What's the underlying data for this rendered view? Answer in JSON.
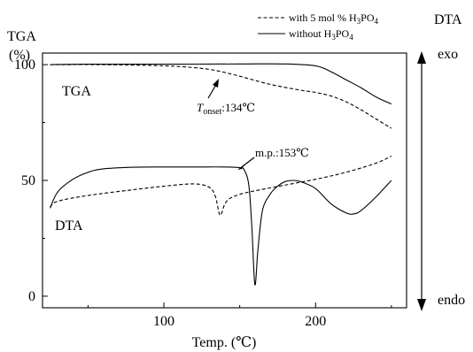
{
  "chart_data": {
    "type": "line",
    "xlabel": "Temp. (℃)",
    "ylabel_left": "TGA",
    "ylabel_left_unit": "(%)",
    "ylabel_right": "DTA",
    "right_top_label": "exo",
    "right_bottom_label": "endo",
    "xlim": [
      20,
      260
    ],
    "ylim": [
      -5,
      105
    ],
    "xticks": [
      100,
      200
    ],
    "yticks": [
      0,
      50,
      100
    ],
    "legend_position": "top-right",
    "legend": [
      {
        "style": "dashed",
        "parts": [
          "with 5 mol % H",
          "3",
          "PO",
          "4"
        ]
      },
      {
        "style": "solid",
        "parts": [
          "without H",
          "3",
          "PO",
          "4"
        ]
      }
    ],
    "curve_labels": {
      "tga": "TGA",
      "dta": "DTA"
    },
    "annotations": {
      "onset_symbol": "T",
      "onset_sub": "onset",
      "onset_value": ":134℃",
      "mp": "m.p.:153℃"
    },
    "series": [
      {
        "curve": "TGA",
        "style": "solid",
        "x": [
          25,
          50,
          100,
          150,
          180,
          200,
          210,
          220,
          230,
          240,
          250
        ],
        "y": [
          100,
          100.2,
          100.2,
          100.3,
          100.3,
          99.5,
          97,
          93.5,
          90,
          86,
          83
        ]
      },
      {
        "curve": "TGA",
        "style": "dashed",
        "x": [
          25,
          60,
          100,
          120,
          134,
          150,
          170,
          190,
          200,
          210,
          220,
          230,
          240,
          250
        ],
        "y": [
          100,
          100,
          99.5,
          98.7,
          97.5,
          95,
          91.5,
          89,
          88,
          86.5,
          84,
          80.5,
          76.5,
          72.5
        ]
      },
      {
        "curve": "DTA",
        "style": "solid",
        "x": [
          25,
          30,
          40,
          50,
          60,
          80,
          100,
          120,
          140,
          150,
          153,
          156,
          158,
          160,
          162,
          165,
          170,
          175,
          180,
          185,
          190,
          200,
          210,
          220,
          225,
          230,
          240,
          250
        ],
        "y": [
          38,
          45,
          50.5,
          53.5,
          55,
          55.7,
          55.8,
          55.8,
          55.8,
          55.5,
          54.5,
          48,
          30,
          5,
          20,
          37,
          44,
          47.5,
          49.5,
          50,
          49.5,
          46.5,
          40,
          36,
          35.5,
          37,
          43,
          50
        ]
      },
      {
        "curve": "DTA",
        "style": "dashed",
        "x": [
          25,
          30,
          50,
          80,
          100,
          120,
          130,
          134,
          137,
          140,
          143,
          150,
          160,
          180,
          200,
          220,
          240,
          250
        ],
        "y": [
          38.5,
          41,
          43.5,
          46,
          47.5,
          48.5,
          47,
          43,
          35,
          39.5,
          42,
          44,
          45.5,
          48,
          50.5,
          53.5,
          57.5,
          60.5
        ]
      }
    ]
  }
}
